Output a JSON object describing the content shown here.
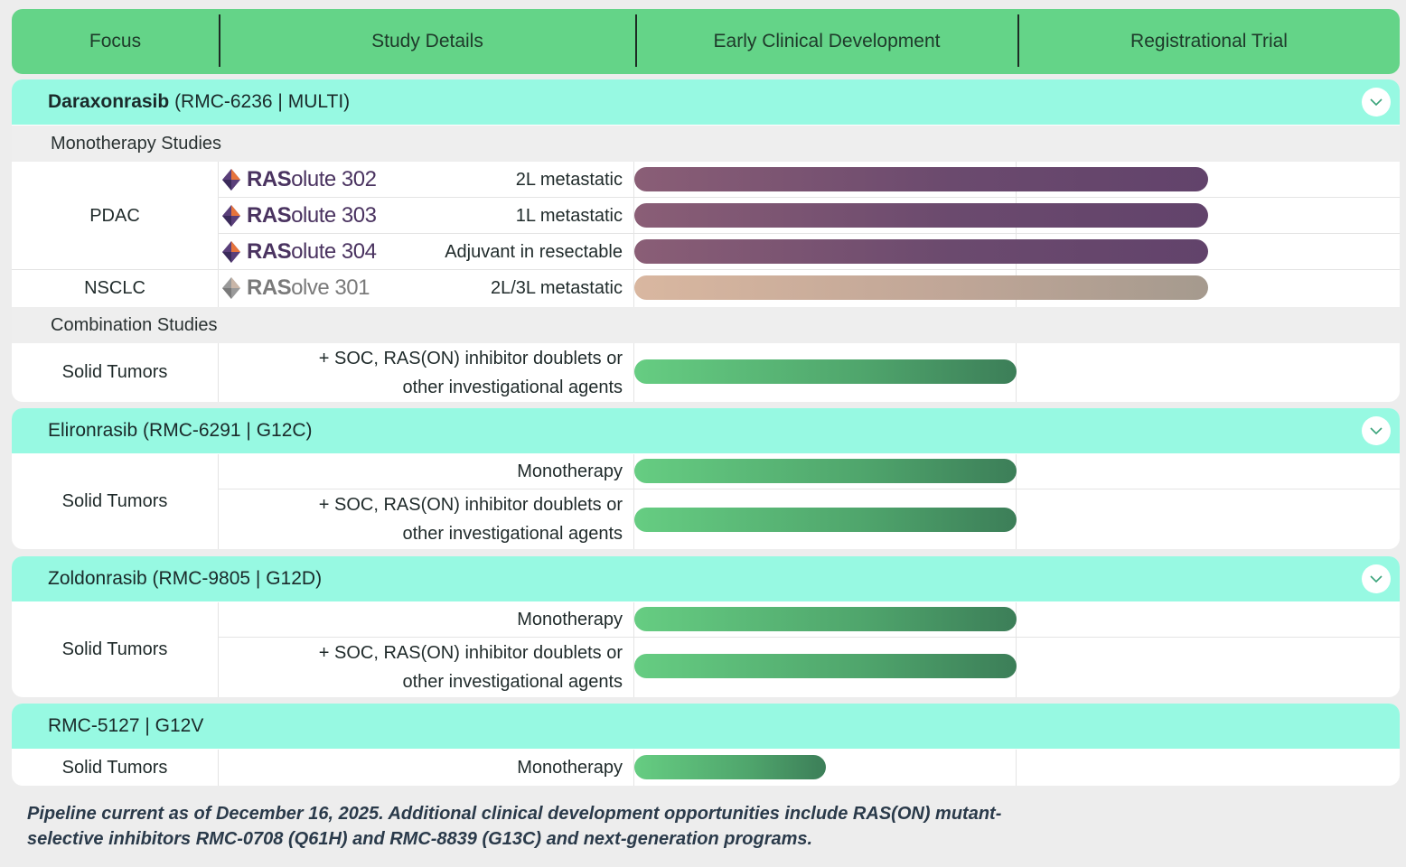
{
  "header": {
    "focus": "Focus",
    "study_details": "Study Details",
    "early": "Early Clinical Development",
    "registrational": "Registrational Trial"
  },
  "colors": {
    "header_green": "#64d488",
    "drug_bar": "#97f9e2",
    "purple_bar": "#6b4a6e",
    "tan_bar": "#c0a697",
    "green_bar": "#4fa56c"
  },
  "daraxonrasib": {
    "name": "Daraxonrasib",
    "suffix": " (RMC-6236 | MULTI)",
    "mono_label": "Monotherapy Studies",
    "combo_label": "Combination Studies",
    "pdac": "PDAC",
    "nsclc": "NSCLC",
    "trials": [
      {
        "brand_bold": "RAS",
        "brand_light": "olute 302",
        "detail": "2L metastatic",
        "progress": 0.75
      },
      {
        "brand_bold": "RAS",
        "brand_light": "olute 303",
        "detail": "1L metastatic",
        "progress": 0.75
      },
      {
        "brand_bold": "RAS",
        "brand_light": "olute 304",
        "detail": "Adjuvant in resectable",
        "progress": 0.75
      },
      {
        "brand_bold": "RAS",
        "brand_light": "olve 301",
        "detail": "2L/3L metastatic",
        "progress": 0.75
      }
    ],
    "combo_focus": "Solid Tumors",
    "combo_detail": "+ SOC, RAS(ON) inhibitor doublets or\nother investigational agents",
    "combo_progress": 0.5
  },
  "elironrasib": {
    "title": "Elironrasib (RMC-6291 | G12C)",
    "focus": "Solid Tumors",
    "mono": "Monotherapy",
    "combo": "+ SOC, RAS(ON) inhibitor doublets or\nother investigational agents",
    "mono_progress": 0.5,
    "combo_progress": 0.5
  },
  "zoldonrasib": {
    "title": "Zoldonrasib (RMC-9805 | G12D)",
    "focus": "Solid Tumors",
    "mono": "Monotherapy",
    "combo": "+ SOC, RAS(ON) inhibitor doublets or\nother investigational agents",
    "mono_progress": 0.5,
    "combo_progress": 0.5
  },
  "rmc5127": {
    "title": "RMC-5127 | G12V",
    "focus": "Solid Tumors",
    "mono": "Monotherapy",
    "mono_progress": 0.25
  },
  "footnote": "Pipeline current as of December 16, 2025. Additional clinical development opportunities include RAS(ON) mutant-selective inhibitors RMC-0708 (Q61H) and RMC-8839 (G13C) and next-generation programs.",
  "icons": {
    "expand": "chevron-down-icon",
    "trial_logo": "ras-diamond-logo-icon"
  }
}
